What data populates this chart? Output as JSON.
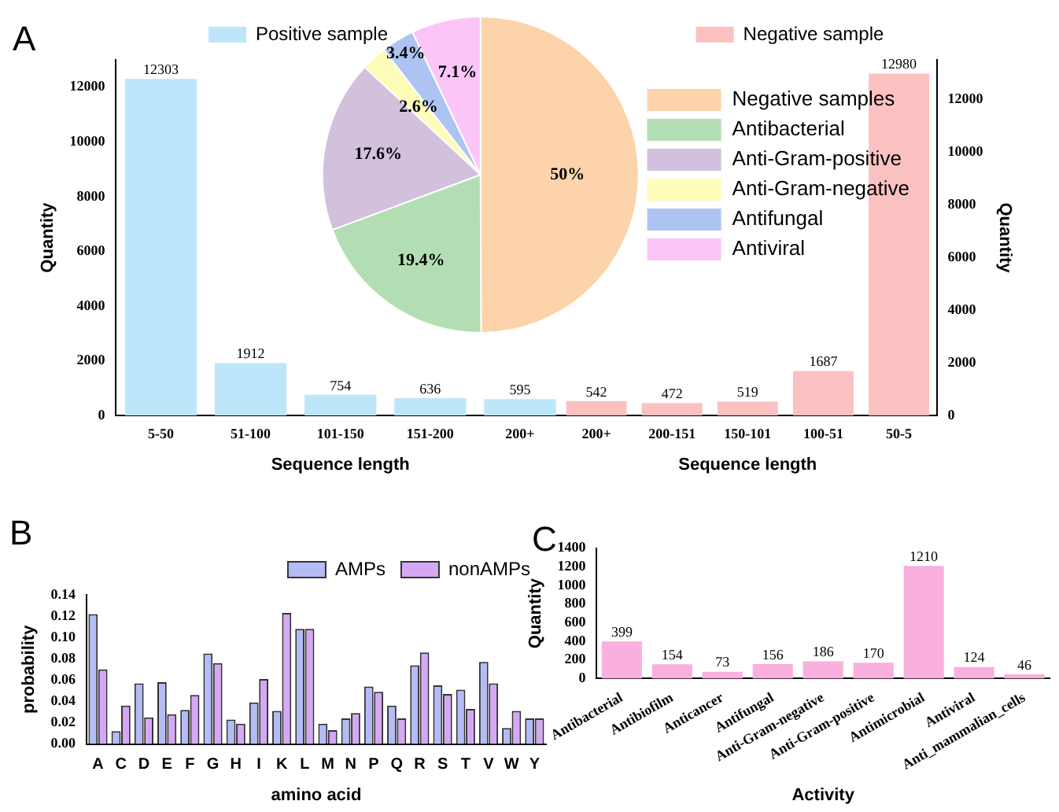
{
  "chart_data": [
    {
      "type": "bar",
      "annotations": [
        "A"
      ],
      "xlabel": "Sequence length",
      "ylabel": "Quantity",
      "categories": [
        "5-50",
        "51-100",
        "101-150",
        "151-200",
        "200+"
      ],
      "series": [
        {
          "name": "Positive sample",
          "color": "#bde6fb",
          "values": [
            12303,
            1912,
            754,
            636,
            595
          ]
        }
      ],
      "ylim": [
        0,
        13000
      ],
      "yticks": [
        0,
        2000,
        4000,
        6000,
        8000,
        10000,
        12000
      ],
      "data_labels": true,
      "legend": "top"
    },
    {
      "type": "bar",
      "xlabel": "Sequence length",
      "ylabel": "Quantity",
      "categories": [
        "200+",
        "200-151",
        "150-101",
        "100-51",
        "50-5"
      ],
      "series": [
        {
          "name": "Negative sample",
          "color": "#fbc1c1",
          "values": [
            542,
            472,
            519,
            1687,
            12980
          ],
          "axis": "y2"
        }
      ],
      "y2lim": [
        0,
        13500
      ],
      "y2ticks": [
        0,
        2000,
        4000,
        6000,
        8000,
        10000,
        12000
      ],
      "data_labels": true,
      "legend": "top"
    },
    {
      "type": "pie",
      "categories": [
        "Negative samples",
        "Antibacterial",
        "Anti-Gram-positive",
        "Anti-Gram-negative",
        "Antifungal",
        "Antiviral"
      ],
      "values": [
        50,
        19.4,
        17.6,
        2.6,
        3.4,
        7.1
      ],
      "colors": [
        "#fcd3aa",
        "#b3deb3",
        "#d2c0dd",
        "#fdfcb8",
        "#adc4f2",
        "#fcc5f8"
      ],
      "value_labels": [
        "50%",
        "19.4%",
        "17.6%",
        "2.6%",
        "3.4%",
        "7.1%"
      ],
      "legend": "right"
    },
    {
      "type": "bar",
      "annotations": [
        "B"
      ],
      "xlabel": "amino acid",
      "ylabel": "probability",
      "categories": [
        "A",
        "C",
        "D",
        "E",
        "F",
        "G",
        "H",
        "I",
        "K",
        "L",
        "M",
        "N",
        "P",
        "Q",
        "R",
        "S",
        "T",
        "V",
        "W",
        "Y"
      ],
      "series": [
        {
          "name": "AMPs",
          "color": "#b4bcf7",
          "values": [
            0.122,
            0.012,
            0.057,
            0.058,
            0.032,
            0.085,
            0.023,
            0.039,
            0.031,
            0.108,
            0.019,
            0.024,
            0.054,
            0.036,
            0.074,
            0.055,
            0.051,
            0.077,
            0.015,
            0.024
          ]
        },
        {
          "name": "nonAMPs",
          "color": "#d5a8f5",
          "values": [
            0.07,
            0.036,
            0.025,
            0.028,
            0.046,
            0.076,
            0.019,
            0.061,
            0.123,
            0.108,
            0.013,
            0.029,
            0.049,
            0.024,
            0.086,
            0.047,
            0.033,
            0.057,
            0.031,
            0.024
          ]
        }
      ],
      "ylim": [
        0,
        0.14
      ],
      "yticks": [
        {
          "value": 0,
          "label": "0.00"
        },
        {
          "value": 0.02,
          "label": "0.02"
        },
        {
          "value": 0.04,
          "label": "0.04"
        },
        {
          "value": 0.06,
          "label": "0.06"
        },
        {
          "value": 0.08,
          "label": "0.08"
        },
        {
          "value": 0.1,
          "label": "0.10"
        },
        {
          "value": 0.12,
          "label": "0.12"
        },
        {
          "value": 0.14,
          "label": "0.14"
        }
      ],
      "legend": "top right"
    },
    {
      "type": "bar",
      "annotations": [
        "C"
      ],
      "xlabel": "Activity",
      "ylabel": "Quantity",
      "categories": [
        "Antibacterial",
        "Antibiofilm",
        "Anticancer",
        "Antifungal",
        "Anti-Gram-negative",
        "Anti-Gram-positive",
        "Antimicrobial",
        "Antiviral",
        "Anti_mammalian_cells"
      ],
      "values": [
        399,
        154,
        73,
        156,
        186,
        170,
        1210,
        124,
        46
      ],
      "color": "#f9b0de",
      "ylim": [
        0,
        1400
      ],
      "yticks": [
        0,
        200,
        400,
        600,
        800,
        1000,
        1200,
        1400
      ],
      "data_labels": true
    }
  ]
}
